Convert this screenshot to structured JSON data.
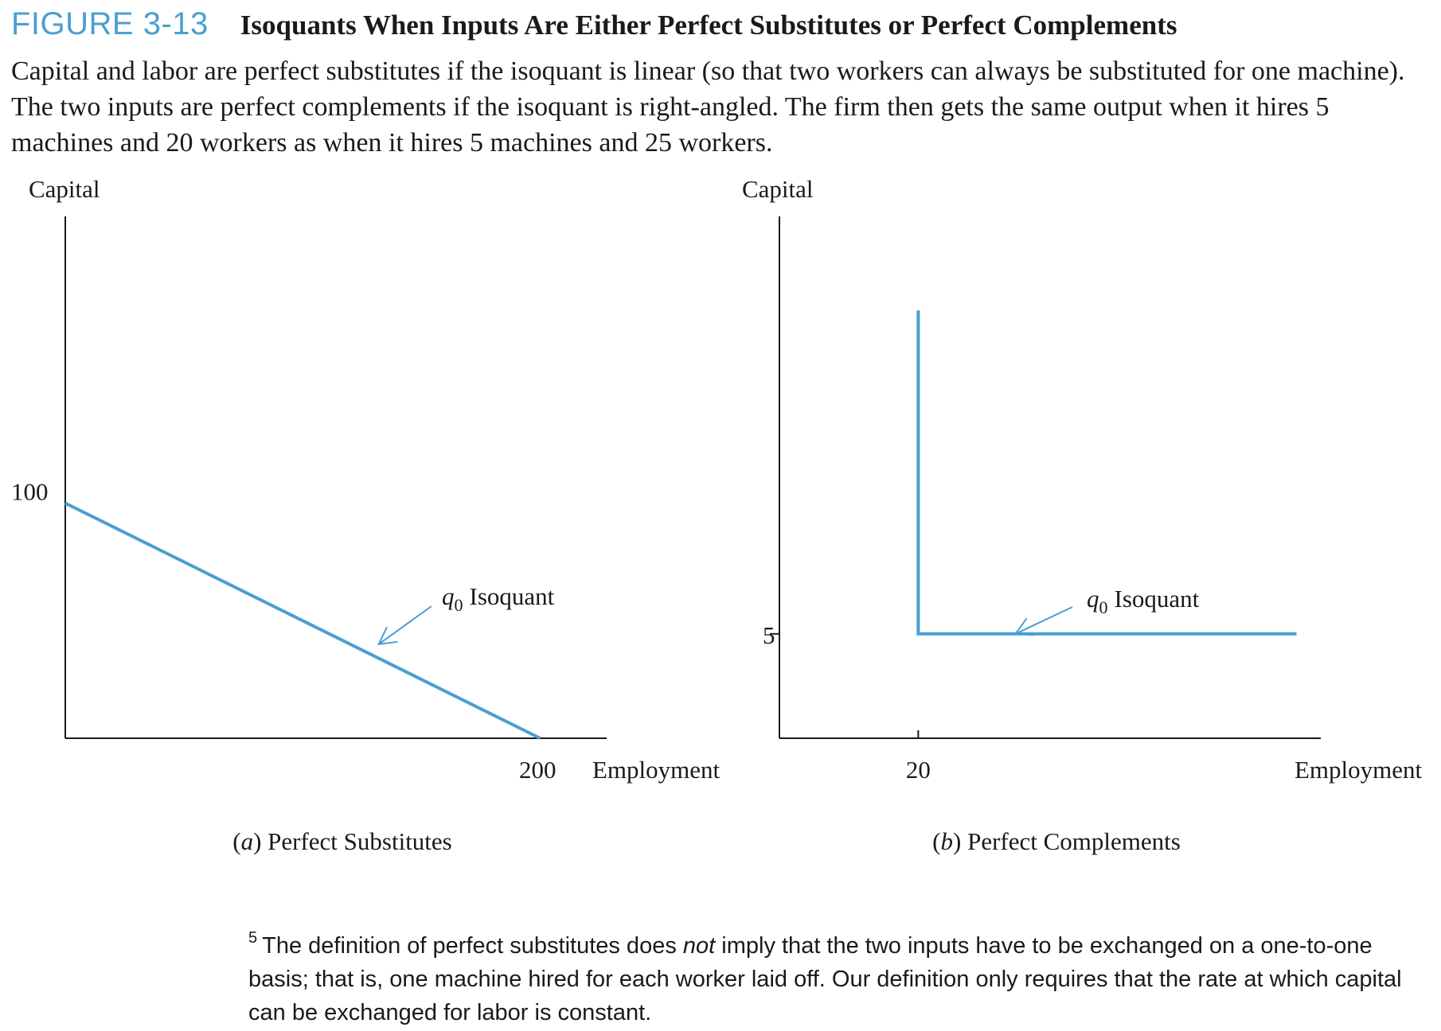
{
  "figure": {
    "label": "FIGURE 3-13",
    "title": "Isoquants When Inputs Are Either Perfect Substitutes or Perfect Complements",
    "caption": "Capital and labor are perfect substitutes if the isoquant is linear (so that two workers can always be substituted for one machine). The two inputs are perfect complements if the isoquant is right-angled. The firm then gets the same output when it hires 5 machines and 20 workers as when it hires 5 machines and 25 workers."
  },
  "chart_data": [
    {
      "type": "line",
      "panel_letter": "a",
      "panel_title": "Perfect Substitutes",
      "xlabel": "Employment",
      "ylabel": "Capital",
      "xlim": [
        0,
        228
      ],
      "ylim": [
        0,
        222
      ],
      "x_ticks": [
        200
      ],
      "y_ticks": [
        100
      ],
      "series": [
        {
          "name": "q0 Isoquant",
          "x": [
            0,
            200
          ],
          "y": [
            100,
            0
          ]
        }
      ],
      "annotation": {
        "subscript_symbol": "q",
        "subscript": "0",
        "text": "Isoquant",
        "points_to": [
          132,
          40
        ]
      },
      "color": "#4a9fd0"
    },
    {
      "type": "line",
      "panel_letter": "b",
      "panel_title": "Perfect Complements",
      "xlabel": "Employment",
      "ylabel": "Capital",
      "xlim": [
        0,
        78
      ],
      "ylim": [
        0,
        25
      ],
      "x_ticks": [
        20
      ],
      "y_ticks": [
        5
      ],
      "series": [
        {
          "name": "q0 Isoquant",
          "x": [
            20,
            20,
            74.5
          ],
          "y": [
            20.5,
            5,
            5
          ]
        }
      ],
      "annotation": {
        "subscript_symbol": "q",
        "subscript": "0",
        "text": "Isoquant",
        "points_to": [
          34,
          5
        ]
      },
      "color": "#4a9fd0"
    }
  ],
  "footnote": {
    "number": "5",
    "text_before": "The definition of perfect substitutes does ",
    "emphasis": "not",
    "text_after": " imply that the two inputs have to be exchanged on a one-to-one basis; that is, one machine hired for each worker laid off. Our definition only requires that the rate at which capital can be exchanged for labor is constant."
  }
}
